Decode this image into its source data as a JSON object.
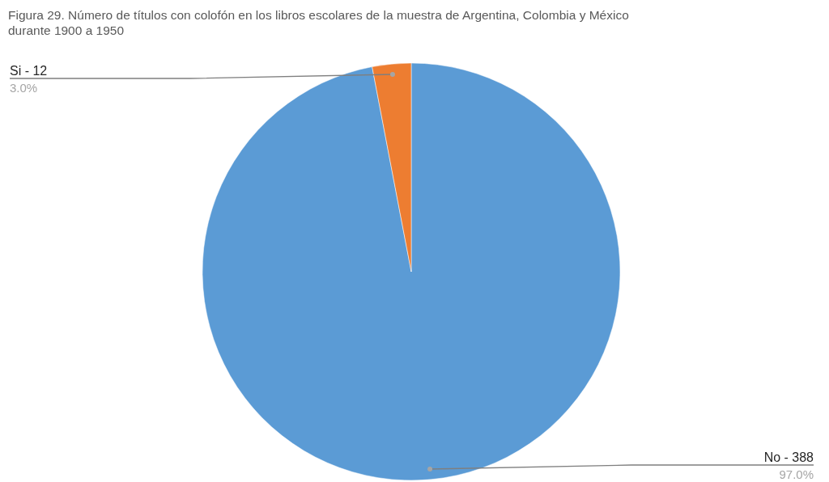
{
  "chart_data": {
    "type": "pie",
    "title": "Figura 29. Número de títulos con colofón en los libros escolares de la muestra de Argentina, Colombia y México durante 1900 a 1950",
    "categories": [
      "No - 388",
      "Si - 12"
    ],
    "values": [
      97.0,
      3.0
    ],
    "colors": [
      "#5b9bd5",
      "#ed7d31"
    ],
    "value_labels": [
      "97.0%",
      "3.0%"
    ]
  }
}
